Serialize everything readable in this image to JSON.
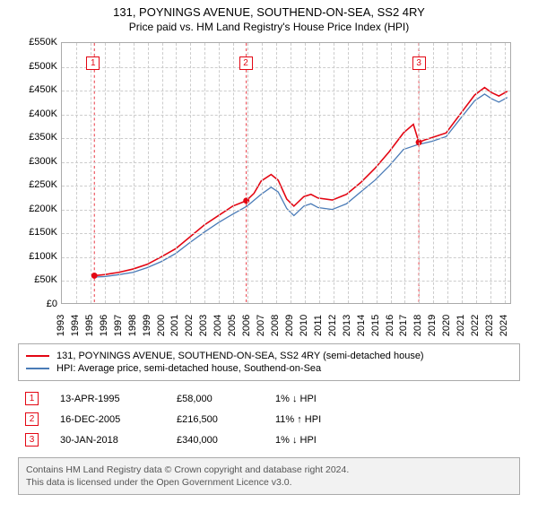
{
  "title": {
    "line1": "131, POYNINGS AVENUE, SOUTHEND-ON-SEA, SS2 4RY",
    "line2": "Price paid vs. HM Land Registry's House Price Index (HPI)"
  },
  "chart": {
    "type": "line",
    "background_color": "#ffffff",
    "grid_color": "#cccccc",
    "axis_color": "#aaaaaa",
    "text_color": "#000000",
    "ylim": [
      0,
      550000
    ],
    "ytick_step": 50000,
    "xrange": [
      1993,
      2024.5
    ],
    "xticks": [
      1993,
      1994,
      1995,
      1996,
      1997,
      1998,
      1999,
      2000,
      2001,
      2002,
      2003,
      2004,
      2005,
      2006,
      2007,
      2008,
      2009,
      2010,
      2011,
      2012,
      2013,
      2014,
      2015,
      2016,
      2017,
      2018,
      2019,
      2020,
      2021,
      2022,
      2023,
      2024
    ],
    "series": [
      {
        "name": "price_paid",
        "label": "131, POYNINGS AVENUE, SOUTHEND-ON-SEA, SS2 4RY (semi-detached house)",
        "color": "#e30613",
        "line_width": 1.6,
        "points": [
          [
            1995.28,
            58000
          ],
          [
            1996,
            60000
          ],
          [
            1997,
            65000
          ],
          [
            1998,
            72000
          ],
          [
            1999,
            82000
          ],
          [
            2000,
            98000
          ],
          [
            2001,
            115000
          ],
          [
            2002,
            140000
          ],
          [
            2003,
            165000
          ],
          [
            2004,
            185000
          ],
          [
            2005,
            205000
          ],
          [
            2005.96,
            216500
          ],
          [
            2006.5,
            232000
          ],
          [
            2007,
            258000
          ],
          [
            2007.7,
            272000
          ],
          [
            2008.2,
            260000
          ],
          [
            2008.8,
            220000
          ],
          [
            2009.3,
            205000
          ],
          [
            2010,
            225000
          ],
          [
            2010.5,
            230000
          ],
          [
            2011,
            222000
          ],
          [
            2012,
            218000
          ],
          [
            2013,
            230000
          ],
          [
            2014,
            255000
          ],
          [
            2015,
            285000
          ],
          [
            2016,
            320000
          ],
          [
            2017,
            360000
          ],
          [
            2017.7,
            378000
          ],
          [
            2018.08,
            340000
          ],
          [
            2018.5,
            345000
          ],
          [
            2019,
            350000
          ],
          [
            2020,
            360000
          ],
          [
            2021,
            400000
          ],
          [
            2022,
            440000
          ],
          [
            2022.7,
            456000
          ],
          [
            2023.2,
            445000
          ],
          [
            2023.7,
            438000
          ],
          [
            2024.3,
            448000
          ]
        ]
      },
      {
        "name": "hpi",
        "label": "HPI: Average price, semi-detached house, Southend-on-Sea",
        "color": "#4a7bb7",
        "line_width": 1.3,
        "points": [
          [
            1995.28,
            55000
          ],
          [
            1996,
            56000
          ],
          [
            1997,
            60000
          ],
          [
            1998,
            65000
          ],
          [
            1999,
            75000
          ],
          [
            2000,
            88000
          ],
          [
            2001,
            105000
          ],
          [
            2002,
            128000
          ],
          [
            2003,
            150000
          ],
          [
            2004,
            170000
          ],
          [
            2005,
            188000
          ],
          [
            2006,
            205000
          ],
          [
            2007,
            230000
          ],
          [
            2007.7,
            245000
          ],
          [
            2008.2,
            235000
          ],
          [
            2008.8,
            200000
          ],
          [
            2009.3,
            185000
          ],
          [
            2010,
            205000
          ],
          [
            2010.5,
            210000
          ],
          [
            2011,
            202000
          ],
          [
            2012,
            198000
          ],
          [
            2013,
            210000
          ],
          [
            2014,
            235000
          ],
          [
            2015,
            260000
          ],
          [
            2016,
            290000
          ],
          [
            2017,
            325000
          ],
          [
            2018,
            335000
          ],
          [
            2019,
            342000
          ],
          [
            2020,
            352000
          ],
          [
            2021,
            390000
          ],
          [
            2022,
            428000
          ],
          [
            2022.7,
            442000
          ],
          [
            2023.2,
            432000
          ],
          [
            2023.7,
            425000
          ],
          [
            2024.3,
            435000
          ]
        ]
      }
    ],
    "sale_markers": [
      {
        "num": "1",
        "year": 1995.28,
        "value": 58000,
        "box_top": true
      },
      {
        "num": "2",
        "year": 2005.96,
        "value": 216500,
        "box_top": true
      },
      {
        "num": "3",
        "year": 2018.08,
        "value": 340000,
        "box_top": true
      }
    ],
    "marker_color": "#e30613",
    "marker_line_color": "#e30613",
    "yprefix": "£",
    "ysuffix_k": "K"
  },
  "legend": {
    "rows": [
      {
        "color": "#e30613",
        "label": "131, POYNINGS AVENUE, SOUTHEND-ON-SEA, SS2 4RY (semi-detached house)"
      },
      {
        "color": "#4a7bb7",
        "label": "HPI: Average price, semi-detached house, Southend-on-Sea"
      }
    ]
  },
  "sales": [
    {
      "num": "1",
      "date": "13-APR-1995",
      "price": "£58,000",
      "diff": "1% ↓ HPI"
    },
    {
      "num": "2",
      "date": "16-DEC-2005",
      "price": "£216,500",
      "diff": "11% ↑ HPI"
    },
    {
      "num": "3",
      "date": "30-JAN-2018",
      "price": "£340,000",
      "diff": "1% ↓ HPI"
    }
  ],
  "footer": {
    "line1": "Contains HM Land Registry data © Crown copyright and database right 2024.",
    "line2": "This data is licensed under the Open Government Licence v3.0."
  }
}
